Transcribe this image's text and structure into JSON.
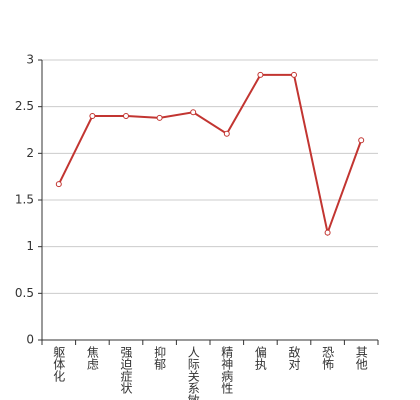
{
  "chart_data": {
    "type": "line",
    "categories": [
      "躯体化",
      "焦虑",
      "强迫症状",
      "抑郁",
      "人际关系敏感",
      "精神病性",
      "偏执",
      "敌对",
      "恐怖",
      "其他"
    ],
    "series": [
      {
        "color": "#c23531",
        "values": [
          1.67,
          2.4,
          2.4,
          2.38,
          2.44,
          2.21,
          2.84,
          2.84,
          1.15,
          2.14
        ]
      }
    ],
    "ylim": [
      0,
      3
    ],
    "yticks": [
      0,
      0.5,
      1,
      1.5,
      2,
      2.5,
      3
    ],
    "grid": true
  }
}
